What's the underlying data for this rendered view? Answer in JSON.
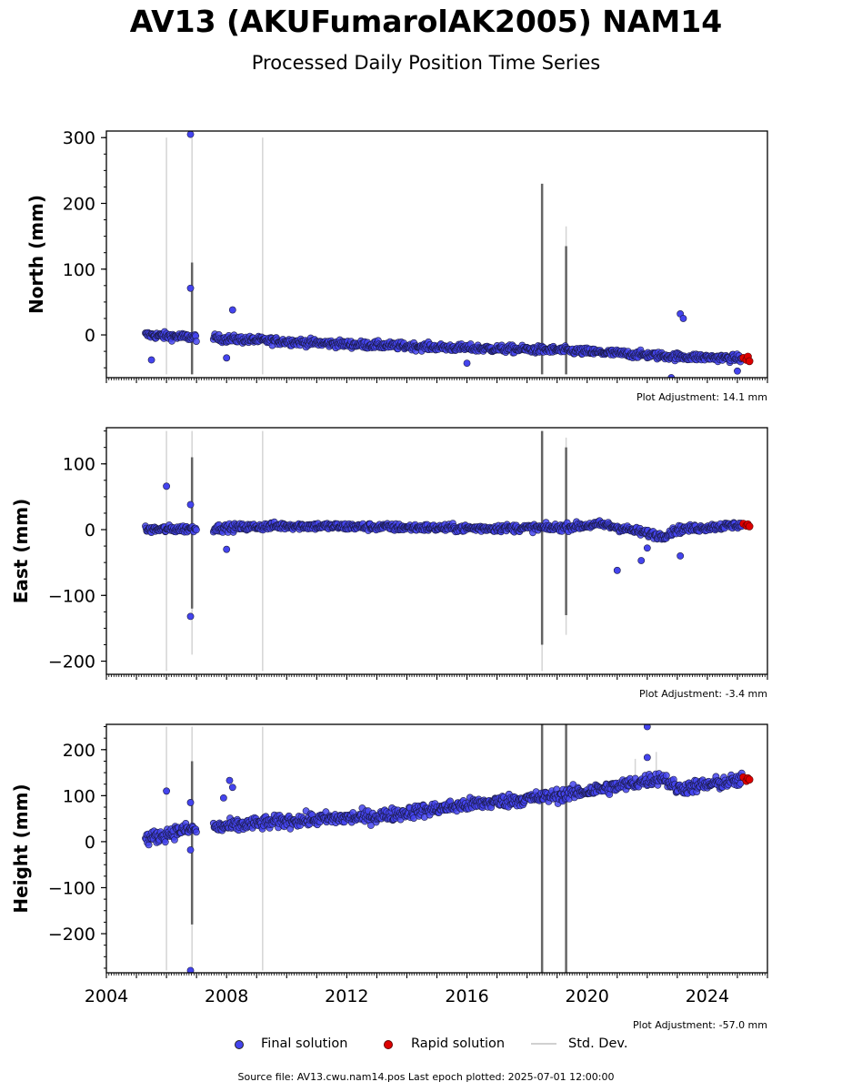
{
  "title": "AV13 (AKUFumarolAK2005) NAM14",
  "subtitle": "Processed Daily Position Time Series",
  "legend": {
    "final": "Final solution",
    "rapid": "Rapid solution",
    "std": "Std. Dev."
  },
  "source_text": "Source file: AV13.cwu.nam14.pos  Last epoch plotted: 2025-07-01 12:00:00",
  "colors": {
    "final": "#4444ee",
    "rapid": "#dd0000",
    "std_light": "#d0d0d0",
    "std_dark": "#555555"
  },
  "chart_data": [
    {
      "type": "scatter",
      "ylabel": "North (mm)",
      "adjustment": "Plot Adjustment: 14.1 mm",
      "xlim": [
        2004,
        2026
      ],
      "ylim": [
        -65,
        310
      ],
      "yticks": [
        0,
        100,
        200,
        300
      ],
      "trend": [
        [
          2005.3,
          0
        ],
        [
          2007.5,
          -5
        ],
        [
          2012,
          -14
        ],
        [
          2016,
          -20
        ],
        [
          2019,
          -23
        ],
        [
          2021,
          -28
        ],
        [
          2023,
          -33
        ],
        [
          2025.3,
          -36
        ]
      ],
      "jitter": 4,
      "outliers": [
        [
          2006.8,
          305
        ],
        [
          2006.8,
          71
        ],
        [
          2008.2,
          38
        ],
        [
          2005.5,
          -38
        ],
        [
          2008,
          -35
        ],
        [
          2016,
          -43
        ],
        [
          2023.1,
          32
        ],
        [
          2023.2,
          25
        ],
        [
          2022.8,
          -65
        ],
        [
          2025,
          -55
        ]
      ],
      "rapid": [
        [
          2025.2,
          -35
        ],
        [
          2025.3,
          -38
        ],
        [
          2025.35,
          -33
        ],
        [
          2025.4,
          -40
        ]
      ],
      "std_dev": [
        [
          2006.0,
          -60,
          300,
          "light"
        ],
        [
          2006.85,
          -60,
          300,
          "light"
        ],
        [
          2006.85,
          -60,
          110,
          "dark"
        ],
        [
          2009.2,
          -60,
          300,
          "light"
        ],
        [
          2018.5,
          -60,
          230,
          "dark"
        ],
        [
          2019.3,
          -60,
          165,
          "light"
        ],
        [
          2019.3,
          -60,
          135,
          "dark"
        ]
      ]
    },
    {
      "type": "scatter",
      "ylabel": "East (mm)",
      "adjustment": "Plot Adjustment: -3.4 mm",
      "xlim": [
        2004,
        2026
      ],
      "ylim": [
        -220,
        155
      ],
      "yticks": [
        -200,
        -100,
        0,
        100
      ],
      "trend": [
        [
          2005.3,
          0
        ],
        [
          2007.5,
          2
        ],
        [
          2010,
          6
        ],
        [
          2016,
          2
        ],
        [
          2019,
          3
        ],
        [
          2020.5,
          8
        ],
        [
          2022.5,
          -10
        ],
        [
          2023,
          0
        ],
        [
          2025.3,
          8
        ]
      ],
      "jitter": 4,
      "outliers": [
        [
          2006,
          66
        ],
        [
          2006.8,
          38
        ],
        [
          2006.8,
          -132
        ],
        [
          2021,
          -62
        ],
        [
          2021.8,
          -47
        ],
        [
          2022,
          -28
        ],
        [
          2008,
          -30
        ],
        [
          2023.1,
          -40
        ]
      ],
      "rapid": [
        [
          2025.2,
          9
        ],
        [
          2025.3,
          6
        ],
        [
          2025.35,
          8
        ],
        [
          2025.4,
          5
        ]
      ],
      "std_dev": [
        [
          2006.0,
          -215,
          150,
          "light"
        ],
        [
          2006.85,
          -190,
          150,
          "light"
        ],
        [
          2006.85,
          -120,
          110,
          "dark"
        ],
        [
          2009.2,
          -215,
          150,
          "light"
        ],
        [
          2018.5,
          -215,
          150,
          "light"
        ],
        [
          2018.5,
          -175,
          150,
          "dark"
        ],
        [
          2019.3,
          -160,
          140,
          "light"
        ],
        [
          2019.3,
          -130,
          125,
          "dark"
        ]
      ]
    },
    {
      "type": "scatter",
      "ylabel": "Height (mm)",
      "adjustment": "Plot Adjustment: -57.0 mm",
      "xlim": [
        2004,
        2026
      ],
      "ylim": [
        -285,
        255
      ],
      "yticks": [
        -200,
        -100,
        0,
        100,
        200
      ],
      "trend": [
        [
          2005.3,
          5
        ],
        [
          2006.5,
          25
        ],
        [
          2007.5,
          30
        ],
        [
          2010,
          45
        ],
        [
          2013,
          55
        ],
        [
          2016,
          80
        ],
        [
          2019,
          100
        ],
        [
          2021,
          120
        ],
        [
          2022.5,
          140
        ],
        [
          2023,
          115
        ],
        [
          2025.3,
          135
        ]
      ],
      "jitter": 10,
      "outliers": [
        [
          2006,
          110
        ],
        [
          2008.1,
          133
        ],
        [
          2008.2,
          118
        ],
        [
          2006.8,
          85
        ],
        [
          2006.8,
          -18
        ],
        [
          2006.8,
          -280
        ],
        [
          2022,
          250
        ],
        [
          2022,
          183
        ],
        [
          2007.9,
          95
        ]
      ],
      "rapid": [
        [
          2025.2,
          140
        ],
        [
          2025.3,
          132
        ],
        [
          2025.35,
          138
        ],
        [
          2025.4,
          135
        ]
      ],
      "std_dev": [
        [
          2006.0,
          -280,
          250,
          "light"
        ],
        [
          2006.85,
          -280,
          250,
          "light"
        ],
        [
          2006.85,
          -180,
          175,
          "dark"
        ],
        [
          2009.2,
          -280,
          250,
          "light"
        ],
        [
          2018.5,
          -285,
          255,
          "dark"
        ],
        [
          2019.3,
          -285,
          255,
          "dark"
        ],
        [
          2021.6,
          130,
          180,
          "light"
        ],
        [
          2022.3,
          140,
          195,
          "light"
        ]
      ]
    }
  ],
  "xticks": [
    2004,
    2008,
    2012,
    2016,
    2020,
    2024
  ]
}
